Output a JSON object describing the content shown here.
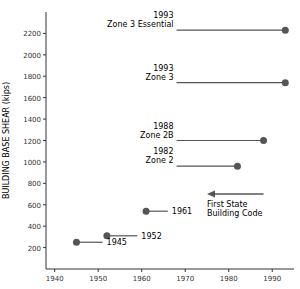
{
  "chart_data": {
    "type": "dot_timeline",
    "ylabel": "BUILDING BASE SHEAR (kips)",
    "xlim": [
      1938,
      1995
    ],
    "ylim": [
      0,
      2400
    ],
    "xticks": [
      1940,
      1950,
      1960,
      1970,
      1980,
      1990
    ],
    "yticks": [
      200,
      400,
      600,
      800,
      1000,
      1200,
      1400,
      1600,
      1800,
      2000,
      2200
    ],
    "color": "#555555",
    "points": [
      {
        "x": 1945,
        "y": 250,
        "x0": 1945,
        "x1": 1951,
        "label": "1945"
      },
      {
        "x": 1952,
        "y": 310,
        "x0": 1952,
        "x1": 1959,
        "label": "1952"
      },
      {
        "x": 1961,
        "y": 540,
        "x0": 1961,
        "x1": 1966,
        "label": "1961"
      },
      {
        "x": 1982,
        "y": 960,
        "x0": 1968,
        "x1": 1982,
        "label": "1982\nZone 2"
      },
      {
        "x": 1988,
        "y": 1200,
        "x0": 1968,
        "x1": 1988,
        "label": "1988\nZone 2B"
      },
      {
        "x": 1993,
        "y": 1740,
        "x0": 1968,
        "x1": 1993,
        "label": "1993\nZone 3"
      },
      {
        "x": 1993,
        "y": 2230,
        "x0": 1968,
        "x1": 1993,
        "label": "1993\nZone 3 Essential"
      }
    ],
    "arrow": {
      "x_tail": 1988,
      "x_tip": 1975,
      "y": 700,
      "label": "First State\nBuilding Code"
    }
  }
}
